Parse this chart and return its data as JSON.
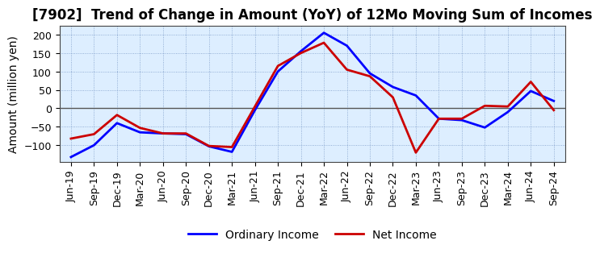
{
  "title": "[7902]  Trend of Change in Amount (YoY) of 12Mo Moving Sum of Incomes",
  "ylabel": "Amount (million yen)",
  "x_labels": [
    "Jun-19",
    "Sep-19",
    "Dec-19",
    "Mar-20",
    "Jun-20",
    "Sep-20",
    "Dec-20",
    "Mar-21",
    "Jun-21",
    "Sep-21",
    "Dec-21",
    "Mar-22",
    "Jun-22",
    "Sep-22",
    "Dec-22",
    "Mar-23",
    "Jun-23",
    "Sep-23",
    "Dec-23",
    "Mar-24",
    "Jun-24",
    "Sep-24"
  ],
  "ordinary_income": [
    -132,
    -100,
    -40,
    -65,
    -68,
    -70,
    -103,
    -118,
    -5,
    100,
    155,
    205,
    170,
    95,
    58,
    35,
    -28,
    -32,
    -52,
    -10,
    47,
    20
  ],
  "net_income": [
    -82,
    -70,
    -18,
    -53,
    -68,
    -68,
    -102,
    -105,
    5,
    115,
    150,
    178,
    105,
    87,
    30,
    -120,
    -28,
    -28,
    7,
    5,
    72,
    -5
  ],
  "ordinary_color": "#0000FF",
  "net_color": "#CC0000",
  "ylim": [
    -145,
    225
  ],
  "yticks": [
    -100,
    -50,
    0,
    50,
    100,
    150,
    200
  ],
  "bg_color": "#DDEEFF",
  "plot_bg": "#E8F0F8",
  "grid_color": "#7799BB",
  "legend_labels": [
    "Ordinary Income",
    "Net Income"
  ],
  "title_fontsize": 12,
  "label_fontsize": 10,
  "tick_fontsize": 9
}
